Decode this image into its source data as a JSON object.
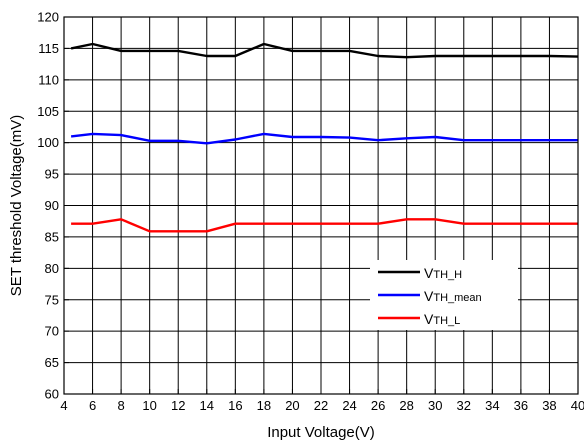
{
  "chart_data": {
    "type": "line",
    "xlabel": "Input Voltage(V)",
    "ylabel": "SET threshold Voltage(mV)",
    "xlim": [
      4,
      40
    ],
    "ylim": [
      60,
      120
    ],
    "xticks": [
      4,
      6,
      8,
      10,
      12,
      14,
      16,
      18,
      20,
      22,
      24,
      26,
      28,
      30,
      32,
      34,
      36,
      38,
      40
    ],
    "yticks": [
      60,
      65,
      70,
      75,
      80,
      85,
      90,
      95,
      100,
      105,
      110,
      115,
      120
    ],
    "grid": true,
    "legend_position": "lower-right",
    "x": [
      4.5,
      6,
      8,
      10,
      12,
      14,
      16,
      18,
      20,
      22,
      24,
      26,
      28,
      30,
      32,
      34,
      36,
      38,
      40
    ],
    "series": [
      {
        "legend_main": "V",
        "legend_sub": "TH_H",
        "color": "#000000",
        "values": [
          115.0,
          115.7,
          114.6,
          114.6,
          114.6,
          113.8,
          113.8,
          115.7,
          114.6,
          114.6,
          114.6,
          113.8,
          113.6,
          113.8,
          113.8,
          113.8,
          113.8,
          113.8,
          113.7
        ]
      },
      {
        "legend_main": "V",
        "legend_sub": "TH_mean",
        "color": "#0000ff",
        "values": [
          101.0,
          101.4,
          101.2,
          100.3,
          100.3,
          99.9,
          100.5,
          101.4,
          100.9,
          100.9,
          100.8,
          100.4,
          100.7,
          100.9,
          100.4,
          100.4,
          100.4,
          100.4,
          100.4
        ]
      },
      {
        "legend_main": "V",
        "legend_sub": "TH_L",
        "color": "#ff0000",
        "values": [
          87.1,
          87.1,
          87.8,
          85.9,
          85.9,
          85.9,
          87.1,
          87.1,
          87.1,
          87.1,
          87.1,
          87.1,
          87.8,
          87.8,
          87.1,
          87.1,
          87.1,
          87.1,
          87.1
        ]
      }
    ]
  }
}
